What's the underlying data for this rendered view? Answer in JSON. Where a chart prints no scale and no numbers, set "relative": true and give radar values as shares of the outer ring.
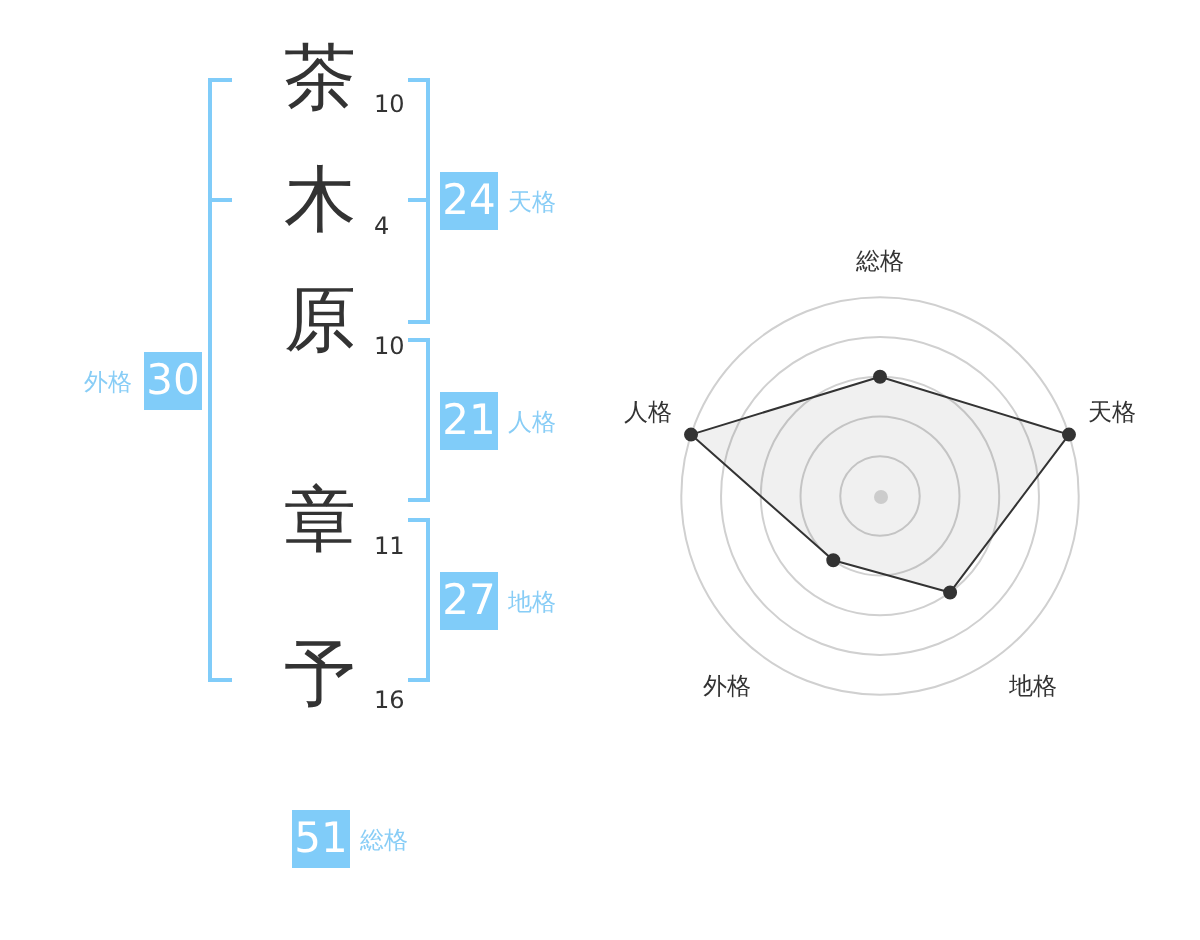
{
  "chart_data": [
    {
      "type": "other",
      "categories": [
        "茶",
        "木",
        "原",
        "章",
        "予"
      ],
      "values": [
        10,
        4,
        10,
        11,
        16
      ],
      "data_labels": true,
      "annotations": [
        "24",
        "天格",
        "30",
        "外格",
        "21",
        "人格",
        "27",
        "地格",
        "51",
        "総格"
      ]
    },
    {
      "type": "radar",
      "categories": [
        "総格",
        "天格",
        "地格",
        "外格",
        "人格"
      ],
      "relative": true,
      "series": [
        {
          "color": "#333333",
          "values": [
            0.6,
            1,
            0.6,
            0.4,
            1
          ]
        }
      ],
      "grid": true,
      "marker": "circle"
    }
  ]
}
